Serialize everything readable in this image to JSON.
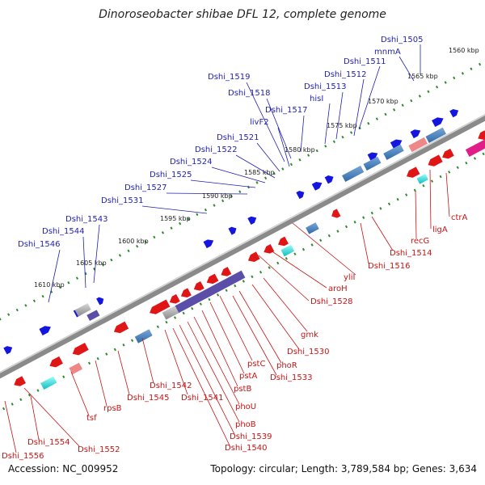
{
  "title": "Dinoroseobacter shibae DFL 12, complete genome",
  "accession": "Accession: NC_009952",
  "stats": "Topology: circular; Length: 3,789,584 bp; Genes: 3,634",
  "colors": {
    "backbone": "#8a8a8a",
    "tick": "#2e8b2e",
    "gene_fwd": "#1515e0",
    "gene_rev": "#e01515",
    "label_top": "#1f1fb4",
    "label_bottom": "#c81414"
  },
  "ticks": [
    "1560 kbp",
    "1565 kbp",
    "1570 kbp",
    "1575 kbp",
    "1580 kbp",
    "1585 kbp",
    "1590 kbp",
    "1595 kbp",
    "1600 kbp",
    "1605 kbp",
    "1610 kbp"
  ],
  "top_labels": [
    "Dshi_1505",
    "mnmA",
    "Dshi_1511",
    "Dshi_1512",
    "Dshi_1513",
    "hisI",
    "Dshi_1517",
    "Dshi_1518",
    "Dshi_1519",
    "livF2",
    "Dshi_1521",
    "Dshi_1522",
    "Dshi_1524",
    "Dshi_1525",
    "Dshi_1527",
    "Dshi_1531",
    "Dshi_1543",
    "Dshi_1544",
    "Dshi_1546"
  ],
  "bottom_labels": [
    "ctrA",
    "ligA",
    "recG",
    "Dshi_1514",
    "Dshi_1516",
    "yliI",
    "aroH",
    "Dshi_1528",
    "gmk",
    "Dshi_1530",
    "phoR",
    "Dshi_1533",
    "pstC",
    "pstA",
    "pstB",
    "phoU",
    "phoB",
    "Dshi_1539",
    "Dshi_1540",
    "Dshi_1541",
    "Dshi_1542",
    "Dshi_1545",
    "rpsB",
    "tsf",
    "Dshi_1552",
    "Dshi_1554",
    "Dshi_1556"
  ]
}
